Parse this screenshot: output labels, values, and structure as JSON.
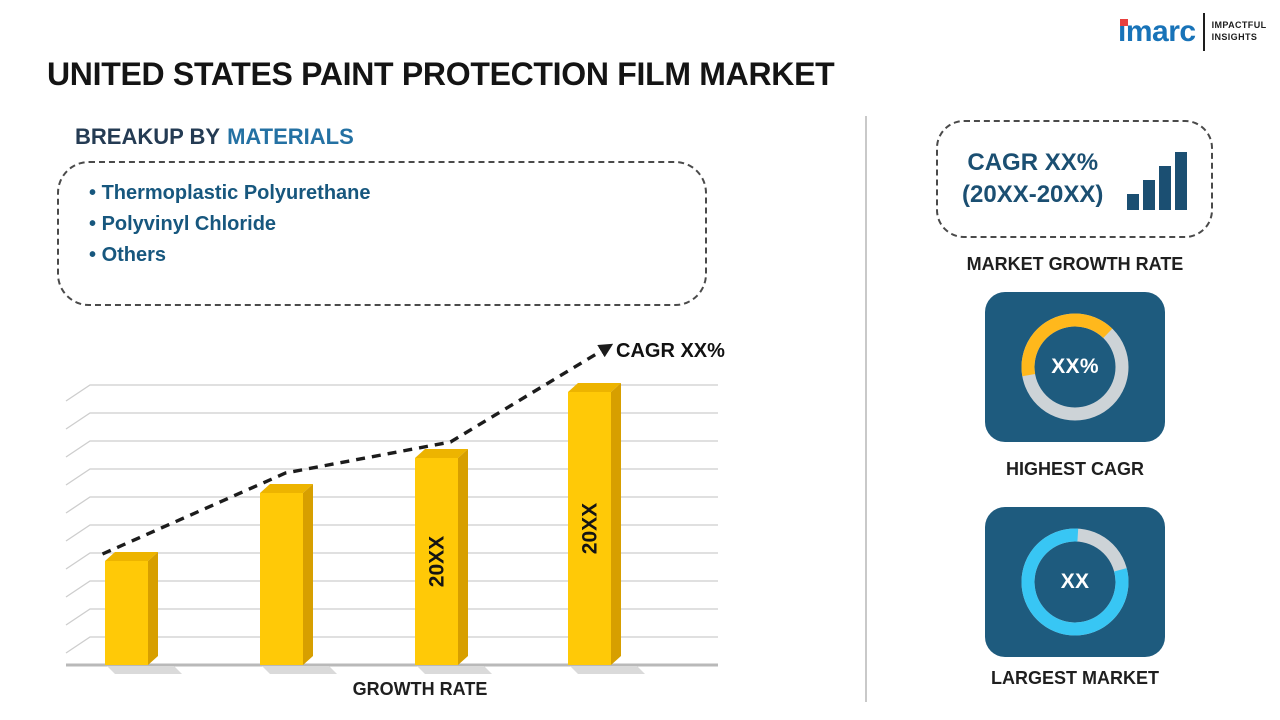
{
  "title": "UNITED STATES PAINT PROTECTION FILM MARKET",
  "logo": {
    "brand": "imarc",
    "tagline": [
      "IMPACTFUL",
      "INSIGHTS"
    ]
  },
  "breakup": {
    "heading_prefix": "BREAKUP BY",
    "heading_highlight": "MATERIALS",
    "items": [
      "Thermoplastic Polyurethane",
      "Polyvinyl Chloride",
      "Others"
    ]
  },
  "chart_data": {
    "type": "bar",
    "title": "",
    "categories": [
      "",
      "",
      "20XX",
      "20XX"
    ],
    "values": [
      38,
      63,
      76,
      100
    ],
    "unit": "relative height (placeholder chart, no numeric axis shown)",
    "xlabel": "GROWTH RATE",
    "ylabel": "",
    "ylim": [
      0,
      110
    ],
    "grid": true,
    "bar_color": "#FFC907",
    "trend_label": "CAGR XX%",
    "trend_style": "dashed-arrow"
  },
  "right_panel": {
    "growth_box": {
      "line1": "CAGR XX%",
      "line2": "(20XX-20XX)"
    },
    "growth_rate_label": "MARKET GROWTH RATE",
    "highest_cagr": {
      "value": "XX%",
      "label": "HIGHEST CAGR",
      "fraction": 0.4,
      "rotate": 170,
      "color": "#FFB81C"
    },
    "largest_market": {
      "value": "XX",
      "label": "LARGEST MARKET",
      "fraction": 0.8,
      "rotate": -15,
      "color": "#38C6F4"
    }
  },
  "colors": {
    "accent_navy": "#1B4F72",
    "bar_yellow": "#FFC907",
    "donut_yellow": "#FFB81C",
    "donut_cyan": "#38C6F4",
    "tile_blue": "#1E5B7E",
    "donut_track_gray": "#CDD3D7",
    "logo_blue": "#1873B8",
    "logo_red": "#E8403E"
  }
}
